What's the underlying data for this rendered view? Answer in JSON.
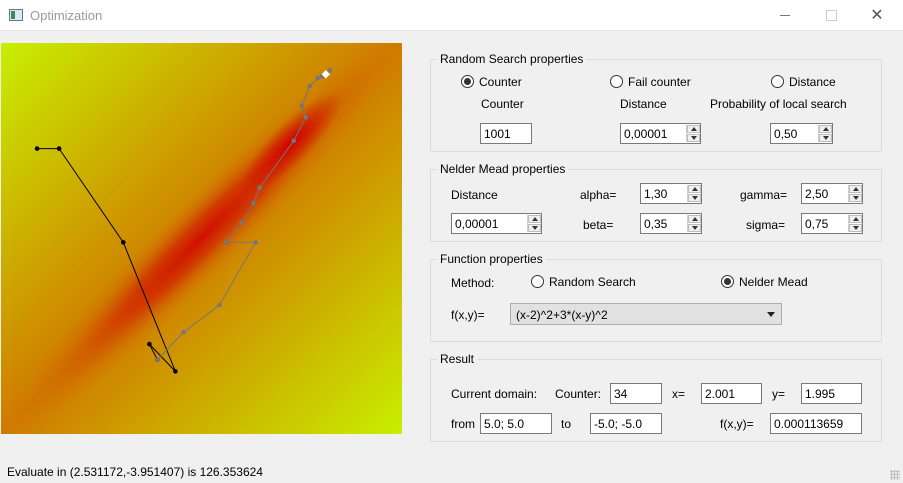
{
  "window": {
    "title": "Optimization",
    "minimize_label": "",
    "maximize_label": "",
    "close_label": "✕"
  },
  "random_search": {
    "title": "Random Search properties",
    "radio_counter": "Counter",
    "radio_fail_counter": "Fail counter",
    "radio_distance": "Distance",
    "selected": "Counter",
    "counter_label": "Counter",
    "counter_value": "1001",
    "distance_label": "Distance",
    "distance_value": "0,00001",
    "prob_label": "Probability of local search",
    "prob_value": "0,50"
  },
  "nelder_mead": {
    "title": "Nelder Mead properties",
    "distance_label": "Distance",
    "distance_value": "0,00001",
    "alpha_label": "alpha=",
    "alpha_value": "1,30",
    "beta_label": "beta=",
    "beta_value": "0,35",
    "gamma_label": "gamma=",
    "gamma_value": "2,50",
    "sigma_label": "sigma=",
    "sigma_value": "0,75"
  },
  "function_props": {
    "title": "Function properties",
    "method_label": "Method:",
    "method_random": "Random Search",
    "method_nelder": "Nelder Mead",
    "selected": "Nelder Mead",
    "fxy_label": "f(x,y)=",
    "fxy_value": "(x-2)^2+3*(x-y)^2"
  },
  "result": {
    "title": "Result",
    "current_domain_label": "Current domain:",
    "counter_label": "Counter:",
    "counter_value": "34",
    "x_label": "x=",
    "x_value": "2.001",
    "y_label": "y=",
    "y_value": "1.995",
    "from_label": "from",
    "from_value": "5.0; 5.0",
    "to_label": "to",
    "to_value": "-5.0; -5.0",
    "f_label": "f(x,y)=",
    "f_value": "0.000113659"
  },
  "status": "Evaluate in (2.531172,-3.951407) is 126.353624",
  "colors": {
    "heat_low": "#c8f000",
    "heat_mid": "#d08800",
    "heat_high": "#cc0000",
    "path_early": "#000000",
    "path_late": "#777777"
  },
  "plot": {
    "domain_from": [
      5.0,
      5.0
    ],
    "domain_to": [
      -5.0,
      -5.0
    ],
    "path_dark": [
      [
        -4.1,
        2.3
      ],
      [
        -3.55,
        2.3
      ],
      [
        -1.95,
        -0.1
      ],
      [
        -0.65,
        -3.4
      ],
      [
        -1.3,
        -2.7
      ],
      [
        -1.1,
        -3.1
      ]
    ],
    "path_gray": [
      [
        -1.1,
        -3.1
      ],
      [
        -0.45,
        -2.4
      ],
      [
        0.45,
        -1.7
      ],
      [
        1.35,
        -0.1
      ],
      [
        0.6,
        -0.1
      ],
      [
        1.0,
        0.4
      ],
      [
        1.3,
        0.9
      ],
      [
        1.45,
        1.3
      ],
      [
        2.3,
        2.5
      ],
      [
        2.6,
        3.1
      ],
      [
        2.5,
        3.4
      ],
      [
        2.7,
        3.9
      ],
      [
        2.9,
        4.1
      ],
      [
        3.0,
        4.15
      ],
      [
        3.2,
        4.3
      ],
      [
        3.1,
        4.2
      ]
    ]
  }
}
